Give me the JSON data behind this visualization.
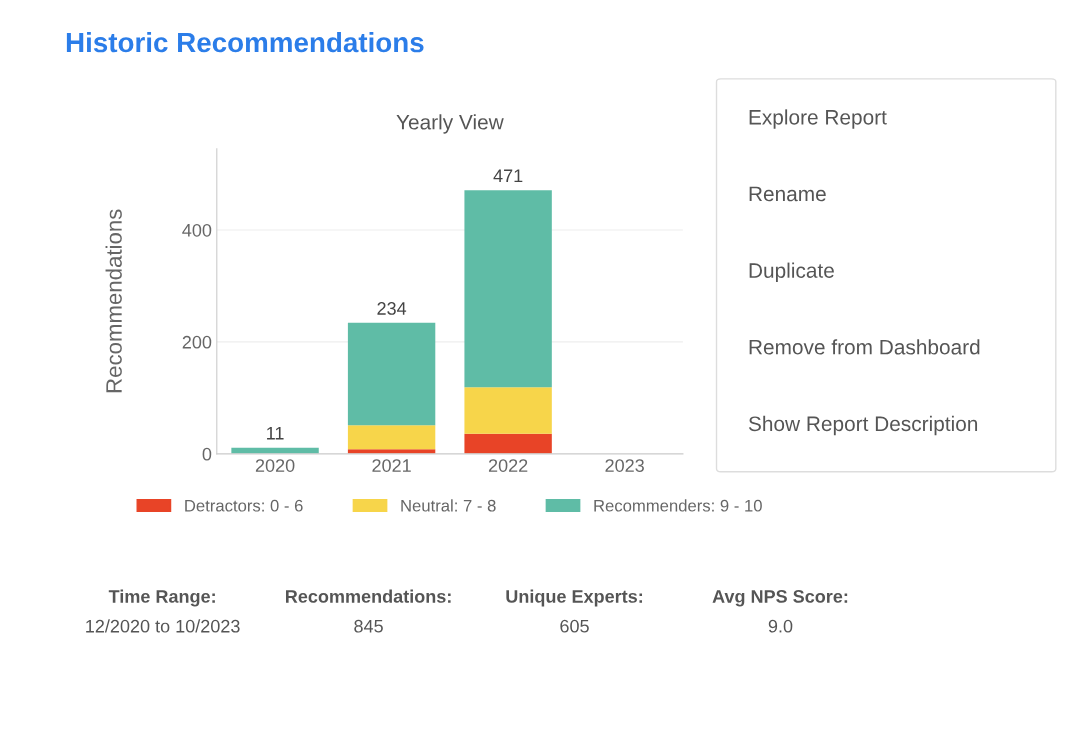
{
  "chart_data": {
    "type": "bar",
    "title": "Historic Recommendations",
    "subtitle": "Yearly View",
    "ylabel": "Recommendations",
    "categories": [
      "2020",
      "2021",
      "2022",
      "2023"
    ],
    "series": [
      {
        "name": "Detractors: 0 - 6",
        "color": "#e84427",
        "values": [
          0,
          8,
          36,
          null
        ]
      },
      {
        "name": "Neutral: 7 - 8",
        "color": "#f7d54a",
        "values": [
          0,
          43,
          83,
          null
        ]
      },
      {
        "name": "Recommenders: 9 - 10",
        "color": "#5fbca6",
        "values": [
          11,
          183,
          352,
          null
        ]
      }
    ],
    "stacked": true,
    "totals": [
      "11",
      "234",
      "471",
      null
    ],
    "ylim": [
      0,
      545
    ],
    "yticks": [
      0,
      200,
      400
    ],
    "grid": "y",
    "legend": "bottom",
    "annotations": [
      "Time Range:",
      "12/2020 to 10/2023",
      "Recommendations:",
      "845",
      "Unique Experts:",
      "605",
      "Avg NPS Score:",
      "9.0",
      "Explore Report",
      "Rename",
      "Duplicate",
      "Remove from Dashboard",
      "Show Report Description"
    ]
  }
}
